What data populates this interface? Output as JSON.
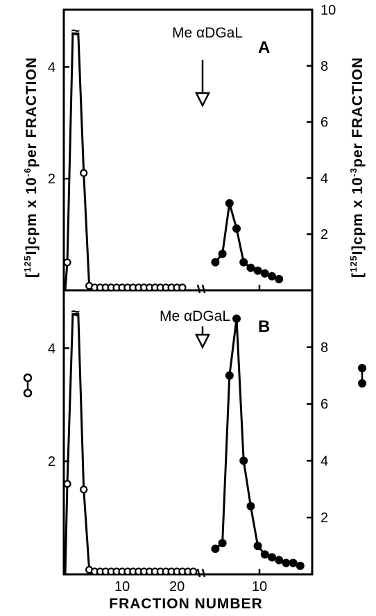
{
  "chart_data": [
    {
      "panel": "A",
      "type": "line",
      "annotation": "Me αDGaL",
      "annotation_fraction": 26,
      "series": [
        {
          "marker": "open-circle",
          "axis": "left",
          "x": [
            1,
            2,
            3,
            4,
            5,
            6,
            7,
            8,
            9,
            10,
            11,
            12,
            13,
            14,
            15,
            16,
            17,
            18,
            19,
            20,
            21,
            22
          ],
          "y": [
            0.5,
            4.6,
            4.6,
            2.1,
            0.08,
            0.05,
            0.05,
            0.05,
            0.05,
            0.05,
            0.05,
            0.05,
            0.05,
            0.05,
            0.05,
            0.05,
            0.05,
            0.05,
            0.05,
            0.05,
            0.05,
            0.05
          ],
          "break_at_peak": true
        },
        {
          "marker": "filled-circle",
          "axis": "right",
          "x": [
            2,
            3,
            4,
            5,
            6,
            7,
            8,
            9,
            10,
            11
          ],
          "y": [
            1.0,
            1.3,
            3.1,
            2.2,
            1.0,
            0.8,
            0.7,
            0.6,
            0.5,
            0.4
          ]
        }
      ]
    },
    {
      "panel": "B",
      "type": "line",
      "annotation": "Me αDGaL",
      "annotation_fraction": 26,
      "series": [
        {
          "marker": "open-circle",
          "axis": "left",
          "x": [
            1,
            2,
            3,
            4,
            5,
            6,
            7,
            8,
            9,
            10,
            11,
            12,
            13,
            14,
            15,
            16,
            17,
            18,
            19,
            20,
            21,
            22,
            23,
            24
          ],
          "y": [
            1.6,
            4.6,
            4.6,
            1.5,
            0.08,
            0.05,
            0.05,
            0.05,
            0.05,
            0.05,
            0.05,
            0.05,
            0.05,
            0.05,
            0.05,
            0.05,
            0.05,
            0.05,
            0.05,
            0.05,
            0.05,
            0.05,
            0.05,
            0.05
          ],
          "break_at_peak": true
        },
        {
          "marker": "filled-circle",
          "axis": "right",
          "x": [
            2,
            3,
            4,
            5,
            6,
            7,
            8,
            9,
            10,
            11,
            12,
            13,
            14
          ],
          "y": [
            0.9,
            1.1,
            7.0,
            9.0,
            4.0,
            2.4,
            1.0,
            0.7,
            0.6,
            0.5,
            0.4,
            0.4,
            0.3
          ]
        }
      ]
    }
  ],
  "axes": {
    "left_ticks": [
      "2",
      "4"
    ],
    "right_ticks_top": [
      "2",
      "4",
      "6",
      "8",
      "10"
    ],
    "right_ticks_bottom": [
      "2",
      "4",
      "6",
      "8"
    ],
    "x_ticks_left": [
      "10",
      "20"
    ],
    "x_ticks_right": [
      "10"
    ],
    "break_mark": "//",
    "peak_break_mark": "≈",
    "left_label_iso": "125",
    "left_label_i": "I",
    "left_label_main": "cpm x 10",
    "left_label_exp": "-6",
    "left_label_tail": "per FRACTION",
    "right_label_iso": "125",
    "right_label_i": "I",
    "right_label_main": "cpm x 10",
    "right_label_exp": "-3",
    "right_label_tail": "per FRACTION",
    "x_label": "FRACTION NUMBER"
  },
  "panel_letters": [
    "A",
    "B"
  ],
  "colors": {
    "ink": "#000000",
    "paper": "#ffffff"
  }
}
